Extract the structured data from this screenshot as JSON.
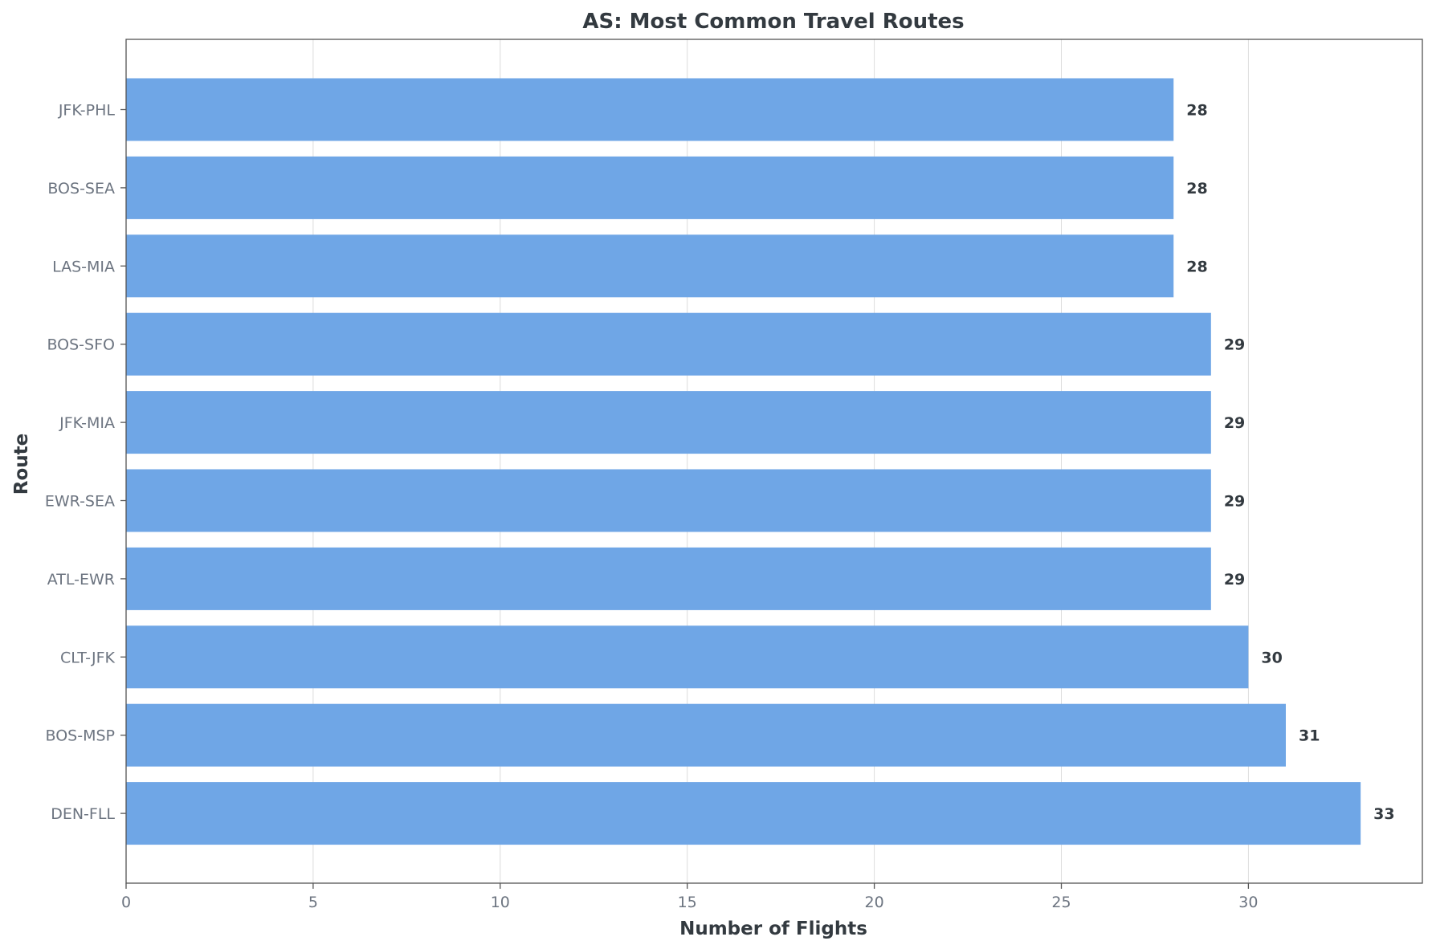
{
  "chart_data": {
    "type": "bar",
    "orientation": "horizontal",
    "title": "AS: Most Common Travel Routes",
    "xlabel": "Number of Flights",
    "ylabel": "Route",
    "categories": [
      "JFK-PHL",
      "BOS-SEA",
      "LAS-MIA",
      "BOS-SFO",
      "JFK-MIA",
      "EWR-SEA",
      "ATL-EWR",
      "CLT-JFK",
      "BOS-MSP",
      "DEN-FLL"
    ],
    "values": [
      28,
      28,
      28,
      29,
      29,
      29,
      29,
      30,
      31,
      33
    ],
    "xlim": [
      0,
      34.65
    ],
    "xticks": [
      0,
      5,
      10,
      15,
      20,
      25,
      30
    ],
    "grid": "x",
    "bar_color": "#6fa6e6",
    "data_labels": true
  }
}
